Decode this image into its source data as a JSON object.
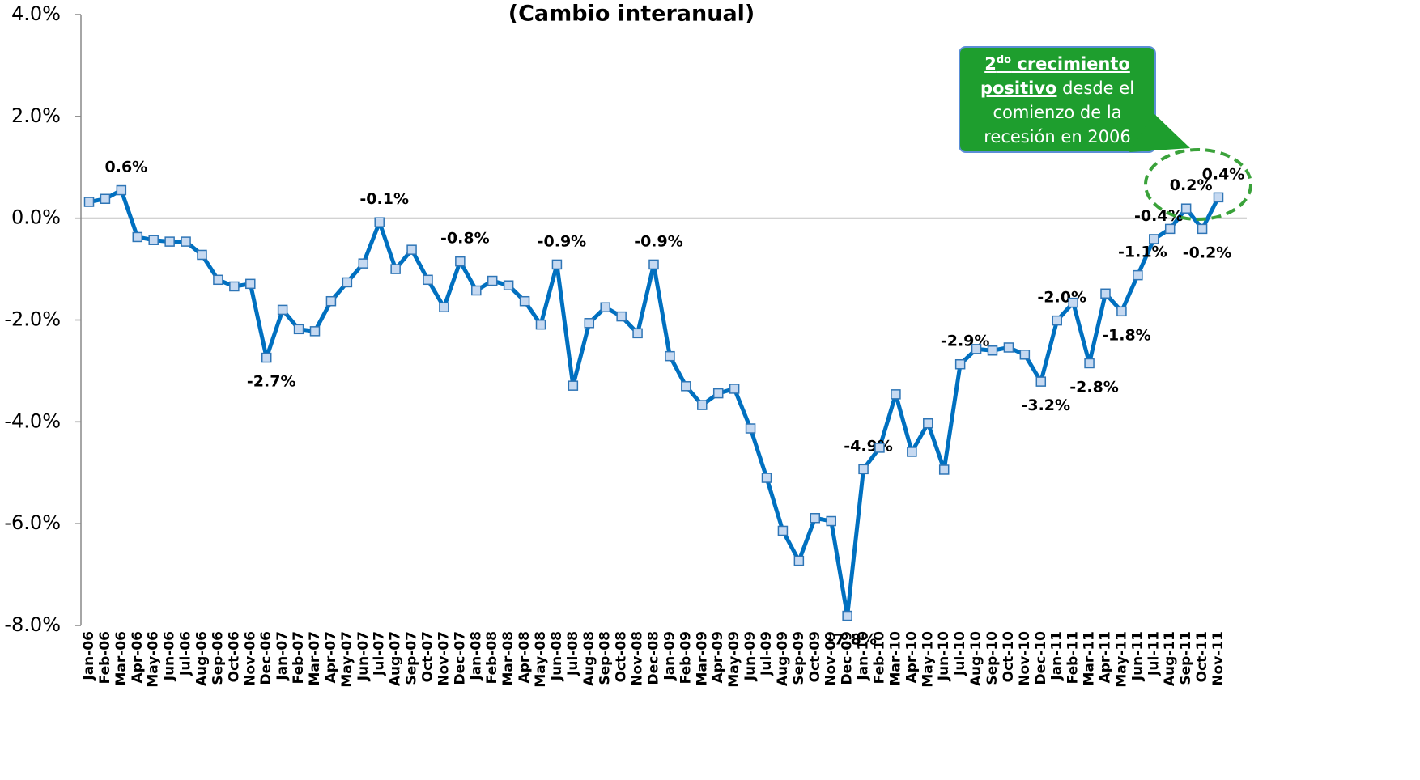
{
  "chart_data": {
    "type": "line",
    "title": "(Cambio interanual)",
    "categories": [
      "Jan-06",
      "Feb-06",
      "Mar-06",
      "Apr-06",
      "May-06",
      "Jun-06",
      "Jul-06",
      "Aug-06",
      "Sep-06",
      "Oct-06",
      "Nov-06",
      "Dec-06",
      "Jan-07",
      "Feb-07",
      "Mar-07",
      "Apr-07",
      "May-07",
      "Jun-07",
      "Jul-07",
      "Aug-07",
      "Sep-07",
      "Oct-07",
      "Nov-07",
      "Dec-07",
      "Jan-08",
      "Feb-08",
      "Mar-08",
      "Apr-08",
      "May-08",
      "Jun-08",
      "Jul-08",
      "Aug-08",
      "Sep-08",
      "Oct-08",
      "Nov-08",
      "Dec-08",
      "Jan-09",
      "Feb-09",
      "Mar-09",
      "Apr-09",
      "May-09",
      "Jun-09",
      "Jul-09",
      "Aug-09",
      "Sep-09",
      "Oct-09",
      "Nov-09",
      "Dec-09",
      "Jan-10",
      "Feb-10",
      "Mar-10",
      "Apr-10",
      "May-10",
      "Jun-10",
      "Jul-10",
      "Aug-10",
      "Sep-10",
      "Oct-10",
      "Nov-10",
      "Dec-10",
      "Jan-11",
      "Feb-11",
      "Mar-11",
      "Apr-11",
      "May-11",
      "Jun-11",
      "Jul-11",
      "Aug-11",
      "Sep-11",
      "Oct-11",
      "Nov-11"
    ],
    "series": [
      {
        "name": "Cambio interanual",
        "color": "#0070c0",
        "marker_fill": "#c6d9f1",
        "values": [
          0.32,
          0.38,
          0.55,
          -0.37,
          -0.43,
          -0.46,
          -0.46,
          -0.72,
          -1.21,
          -1.34,
          -1.29,
          -2.74,
          -1.8,
          -2.18,
          -2.22,
          -1.63,
          -1.26,
          -0.89,
          -0.08,
          -1.0,
          -0.62,
          -1.21,
          -1.75,
          -0.85,
          -1.42,
          -1.23,
          -1.32,
          -1.63,
          -2.09,
          -0.91,
          -3.29,
          -2.06,
          -1.75,
          -1.93,
          -2.26,
          -0.91,
          -2.71,
          -3.3,
          -3.67,
          -3.44,
          -3.35,
          -4.13,
          -5.1,
          -6.14,
          -6.73,
          -5.89,
          -5.95,
          -7.81,
          -4.93,
          -4.51,
          -3.46,
          -4.59,
          -4.03,
          -4.94,
          -2.87,
          -2.57,
          -2.6,
          -2.54,
          -2.68,
          -3.21,
          -2.01,
          -1.66,
          -2.85,
          -1.48,
          -1.83,
          -1.12,
          -0.41,
          -0.21,
          0.19,
          -0.21,
          0.41
        ],
        "value_labels": [
          null,
          null,
          "0.6%",
          null,
          null,
          null,
          null,
          null,
          null,
          null,
          null,
          "-2.7%",
          null,
          null,
          null,
          null,
          null,
          null,
          "-0.1%",
          null,
          null,
          null,
          null,
          "-0.8%",
          null,
          null,
          null,
          null,
          null,
          "-0.9%",
          null,
          null,
          null,
          null,
          null,
          "-0.9%",
          null,
          null,
          null,
          null,
          null,
          null,
          null,
          null,
          null,
          null,
          null,
          "-7.8%",
          "-4.9%",
          null,
          null,
          null,
          null,
          null,
          "-2.9%",
          null,
          null,
          null,
          null,
          "-3.2%",
          "-2.0%",
          null,
          "-2.8%",
          null,
          "-1.8%",
          "-1.1%",
          "-0.4%",
          null,
          "0.2%",
          "-0.2%",
          "0.4%"
        ]
      }
    ],
    "ylim": [
      -8,
      4
    ],
    "yticks": [
      {
        "value": -8,
        "label": "-8.0%"
      },
      {
        "value": -6,
        "label": "-6.0%"
      },
      {
        "value": -4,
        "label": "-4.0%"
      },
      {
        "value": -2,
        "label": "-2.0%"
      },
      {
        "value": 0,
        "label": "0.0%"
      },
      {
        "value": 2,
        "label": "2.0%"
      },
      {
        "value": 4,
        "label": "4.0%"
      }
    ],
    "annotation": {
      "lines": [
        [
          "2",
          "do",
          " crecimiento"
        ],
        [
          "positivo",
          " desde el"
        ],
        [
          "comienzo de la"
        ],
        [
          "recesión en 2006"
        ]
      ],
      "color": "#1e9e2e"
    }
  }
}
